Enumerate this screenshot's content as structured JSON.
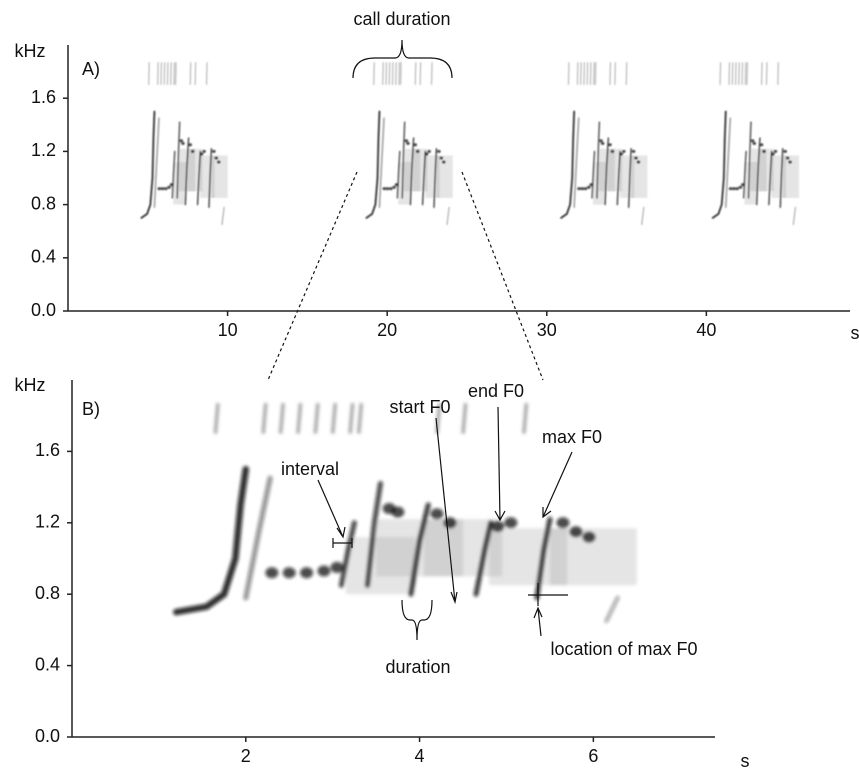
{
  "chart_data": [
    {
      "type": "spectrogram",
      "panel_label": "A)",
      "y_label": "kHz",
      "x_label": "s",
      "xlim": [
        0,
        49
      ],
      "ylim": [
        0,
        2
      ],
      "xticks": [
        10,
        20,
        30,
        40
      ],
      "yticks": [
        {
          "value": 0,
          "label": "0.0"
        },
        0.4,
        0.8,
        1.2,
        1.6
      ],
      "annotations": [
        "call duration"
      ]
    },
    {
      "type": "spectrogram",
      "panel_label": "B)",
      "y_label": "kHz",
      "x_label": "s",
      "xlim": [
        0,
        7.4
      ],
      "ylim": [
        0,
        2
      ],
      "xticks": [
        2,
        4,
        6
      ],
      "yticks": [
        {
          "value": 0,
          "label": "0.0"
        },
        0.4,
        0.8,
        1.2,
        1.6
      ],
      "annotations": [
        "interval",
        "start F0",
        "end F0",
        "max F0",
        "duration",
        "location of max F0"
      ]
    }
  ]
}
